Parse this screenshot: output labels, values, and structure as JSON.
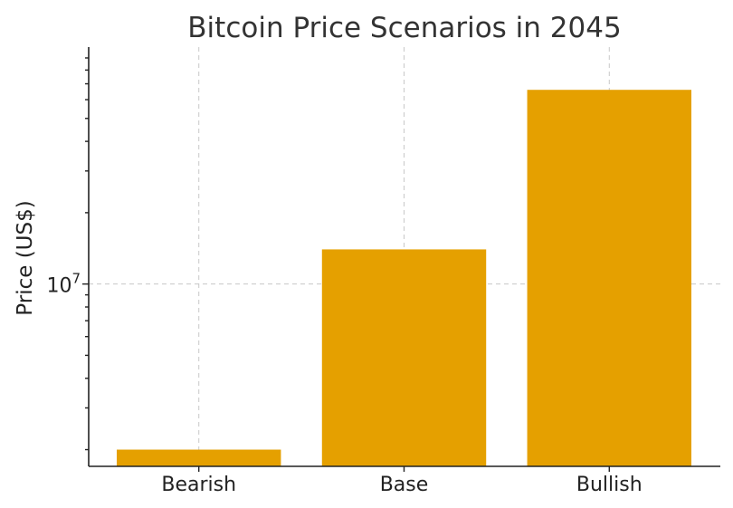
{
  "chart_data": {
    "type": "bar",
    "title": "Bitcoin Price Scenarios in 2045",
    "xlabel": "",
    "ylabel": "Price (US$)",
    "categories": [
      "Bearish",
      "Base",
      "Bullish"
    ],
    "values": [
      2000000,
      14000000,
      66000000
    ],
    "yscale": "log",
    "ylim": [
      1700000,
      100000000
    ],
    "yticks": [
      {
        "value": 10000000,
        "base": "10",
        "exponent": "7"
      }
    ],
    "grid": true,
    "bar_color": "#E5A000"
  }
}
